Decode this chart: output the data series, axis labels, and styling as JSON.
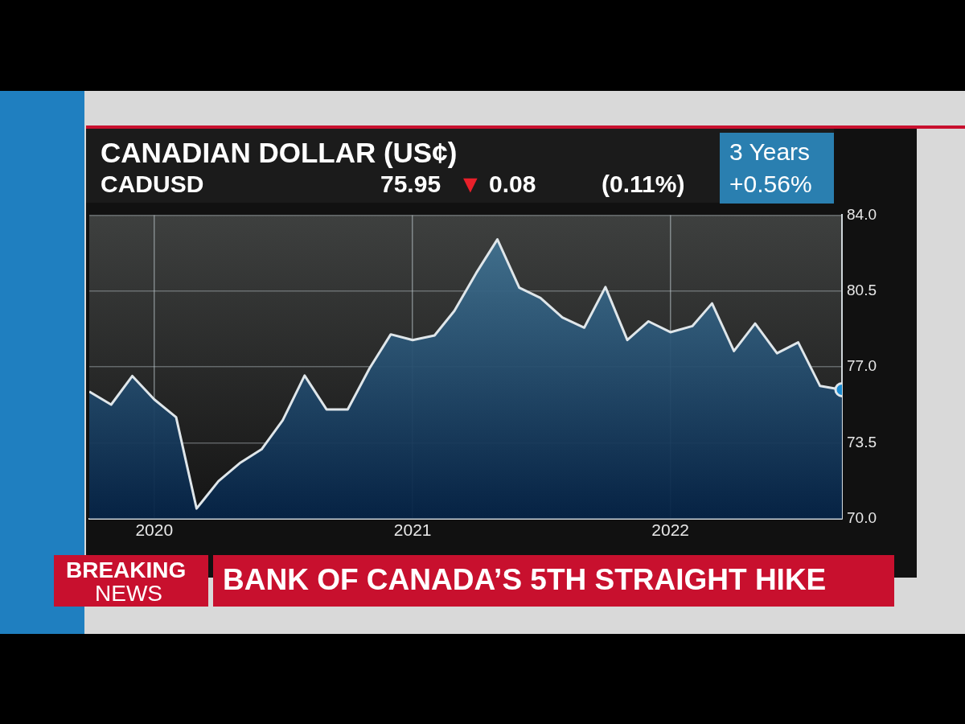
{
  "chart_data": {
    "type": "area",
    "title": "CANADIAN DOLLAR (US¢)",
    "subtitle": "CADUSD",
    "annotations": [
      "75.95",
      "▼ 0.08",
      "(0.11%)",
      "3 Years",
      "+0.56%",
      "BREAKING",
      "NEWS",
      "BANK OF CANADA’S 5TH STRAIGHT HIKE"
    ],
    "x": [
      "2019-10",
      "2019-11",
      "2019-12",
      "2020-01",
      "2020-02",
      "2020-03",
      "2020-04",
      "2020-05",
      "2020-06",
      "2020-07",
      "2020-08",
      "2020-09",
      "2020-10",
      "2020-11",
      "2020-12",
      "2021-01",
      "2021-02",
      "2021-03",
      "2021-04",
      "2021-05",
      "2021-06",
      "2021-07",
      "2021-08",
      "2021-09",
      "2021-10",
      "2021-11",
      "2021-12",
      "2022-01",
      "2022-02",
      "2022-03",
      "2022-04",
      "2022-05",
      "2022-06",
      "2022-07",
      "2022-08",
      "2022-09"
    ],
    "series": [
      {
        "color": "#dfe6ea",
        "values": [
          75.86,
          75.26,
          76.58,
          75.5,
          74.68,
          70.47,
          71.73,
          72.56,
          73.2,
          74.54,
          76.6,
          75.04,
          75.04,
          76.94,
          78.5,
          78.24,
          78.45,
          79.58,
          81.33,
          82.88,
          80.65,
          80.18,
          79.28,
          78.81,
          80.68,
          78.24,
          79.1,
          78.6,
          78.88,
          79.93,
          77.73,
          79.0,
          77.63,
          78.13,
          76.12,
          75.95
        ]
      }
    ],
    "xlim": [
      "2019-10",
      "2022-09"
    ],
    "xticks": [
      "2020",
      "2021",
      "2022"
    ],
    "ylim": [
      70,
      84
    ],
    "yticks": [
      {
        "value": 70,
        "label": "70.0"
      },
      {
        "value": 73.5,
        "label": "73.5"
      },
      {
        "value": 77,
        "label": "77.0"
      },
      {
        "value": 80.5,
        "label": "80.5"
      },
      {
        "value": 84,
        "label": "84.0"
      }
    ],
    "grid": true,
    "legend": false,
    "marker": "none"
  }
}
